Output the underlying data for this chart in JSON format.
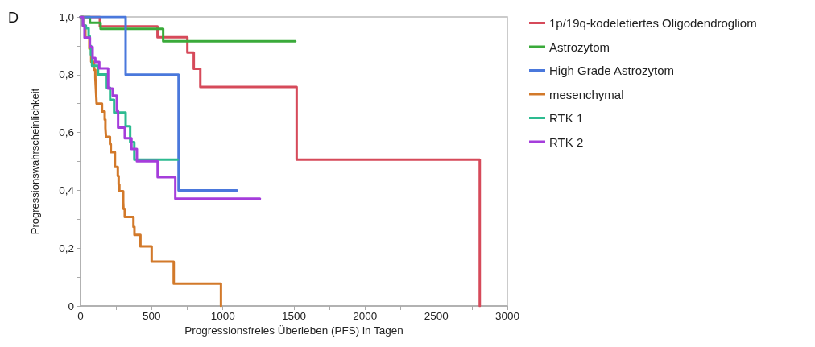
{
  "chart_data": {
    "type": "step",
    "xlabel": "Progressionsfreies Überleben (PFS) in Tagen",
    "ylabel": "Progressionswahrscheinlichkeit",
    "annotations": [
      "D"
    ],
    "xlim": [
      0,
      3000
    ],
    "xticks": [
      0,
      {
        "value": 250,
        "label": null
      },
      500,
      {
        "value": 750,
        "label": null
      },
      1000,
      {
        "value": 1250,
        "label": null
      },
      1500,
      {
        "value": 1750,
        "label": null
      },
      2000,
      {
        "value": 2250,
        "label": null
      },
      2500,
      {
        "value": 2750,
        "label": null
      },
      3000
    ],
    "ylim": [
      0,
      1
    ],
    "yticks": [
      0,
      {
        "value": 0.1,
        "label": null
      },
      {
        "value": 0.2,
        "label": "0,2"
      },
      {
        "value": 0.3,
        "label": null
      },
      {
        "value": 0.4,
        "label": "0,4"
      },
      {
        "value": 0.5,
        "label": null
      },
      {
        "value": 0.6,
        "label": "0,6"
      },
      {
        "value": 0.7,
        "label": null
      },
      {
        "value": 0.8,
        "label": "0,8"
      },
      {
        "value": 0.9,
        "label": null
      },
      {
        "value": 1,
        "label": "1,0"
      }
    ],
    "grid": false,
    "legend": "top right",
    "marker": "none",
    "line_style": "solid",
    "series": [
      {
        "name": "1p/19q-kodeletiertes Oligodendrogliom",
        "color": "#d64a5a",
        "x": [
          0,
          136,
          541,
          751,
          796,
          842,
          1519,
          2806
        ],
        "values": [
          1,
          0.967,
          0.93,
          0.877,
          0.82,
          0.758,
          0.506,
          0
        ]
      },
      {
        "name": "Astrozytom",
        "color": "#3aaa3a",
        "x": [
          0,
          66,
          141,
          581,
          1510
        ],
        "values": [
          1,
          0.98,
          0.959,
          0.916,
          0.916
        ]
      },
      {
        "name": "High Grade Astrozytom",
        "color": "#4a78dc",
        "x": [
          0,
          317,
          689,
          1100
        ],
        "values": [
          1,
          0.8,
          0.4,
          0.4
        ]
      },
      {
        "name": "mesenchymal",
        "color": "#d2792a",
        "x": [
          0,
          17,
          34,
          62,
          75,
          95,
          104,
          107,
          110,
          113,
          151,
          170,
          175,
          179,
          207,
          213,
          242,
          262,
          268,
          273,
          300,
          302,
          311,
          372,
          379,
          421,
          500,
          655,
          987
        ],
        "values": [
          1,
          0.97,
          0.928,
          0.891,
          0.845,
          0.817,
          0.789,
          0.76,
          0.73,
          0.7,
          0.673,
          0.645,
          0.615,
          0.585,
          0.56,
          0.532,
          0.481,
          0.45,
          0.42,
          0.397,
          0.36,
          0.336,
          0.308,
          0.274,
          0.246,
          0.206,
          0.153,
          0.077,
          0
        ]
      },
      {
        "name": "RTK 1",
        "color": "#2dbb90",
        "x": [
          0,
          17,
          38,
          57,
          65,
          73,
          81,
          123,
          185,
          208,
          236,
          317,
          349,
          378,
          683
        ],
        "values": [
          1,
          0.97,
          0.961,
          0.933,
          0.9,
          0.87,
          0.831,
          0.801,
          0.755,
          0.713,
          0.669,
          0.622,
          0.567,
          0.506,
          0.506
        ]
      },
      {
        "name": "RTK 2",
        "color": "#a53ddb",
        "x": [
          0,
          17,
          28,
          66,
          85,
          104,
          132,
          194,
          226,
          255,
          264,
          311,
          358,
          396,
          542,
          666,
          1261
        ],
        "values": [
          1,
          0.97,
          0.928,
          0.896,
          0.858,
          0.844,
          0.822,
          0.752,
          0.728,
          0.674,
          0.617,
          0.58,
          0.543,
          0.501,
          0.446,
          0.371,
          0.371
        ]
      }
    ]
  }
}
